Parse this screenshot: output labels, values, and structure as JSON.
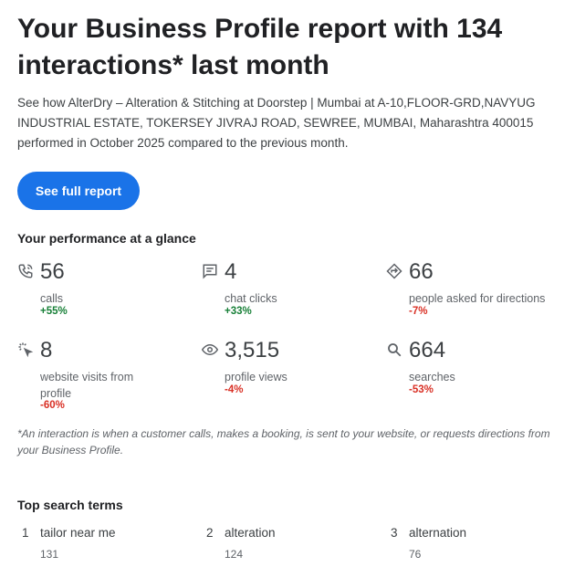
{
  "title": "Your Business Profile report with 134 interactions* last month",
  "description": "See how AlterDry – Alteration & Stitching at Doorstep | Mumbai at A-10,FLOOR-GRD,NAVYUG INDUSTRIAL ESTATE, TOKERSEY JIVRAJ ROAD, SEWREE, MUMBAI, Maharashtra 400015 performed in October 2025 compared to the previous month.",
  "button_label": "See full report",
  "performance": {
    "heading": "Your performance at a glance",
    "metrics": [
      {
        "icon": "phone-icon",
        "value": "56",
        "label": "calls",
        "change": "+55%",
        "trend": "up"
      },
      {
        "icon": "chat-icon",
        "value": "4",
        "label": "chat clicks",
        "change": "+33%",
        "trend": "up"
      },
      {
        "icon": "directions-icon",
        "value": "66",
        "label": "people asked for directions",
        "change": "-7%",
        "trend": "down"
      },
      {
        "icon": "click-icon",
        "value": "8",
        "label": "website visits from profile",
        "change": "-60%",
        "trend": "down"
      },
      {
        "icon": "eye-icon",
        "value": "3,515",
        "label": "profile views",
        "change": "-4%",
        "trend": "down"
      },
      {
        "icon": "search-icon",
        "value": "664",
        "label": "searches",
        "change": "-53%",
        "trend": "down"
      }
    ]
  },
  "footnote": "*An interaction is when a customer calls, makes a booking, is sent to your website, or requests directions from your Business Profile.",
  "search_terms": {
    "heading": "Top search terms",
    "items": [
      {
        "rank": "1",
        "term": "tailor near me",
        "count": "131"
      },
      {
        "rank": "2",
        "term": "alteration",
        "count": "124"
      },
      {
        "rank": "3",
        "term": "alternation",
        "count": "76"
      }
    ]
  },
  "colors": {
    "accent": "#1a73e8",
    "positive": "#188038",
    "negative": "#d93025"
  }
}
